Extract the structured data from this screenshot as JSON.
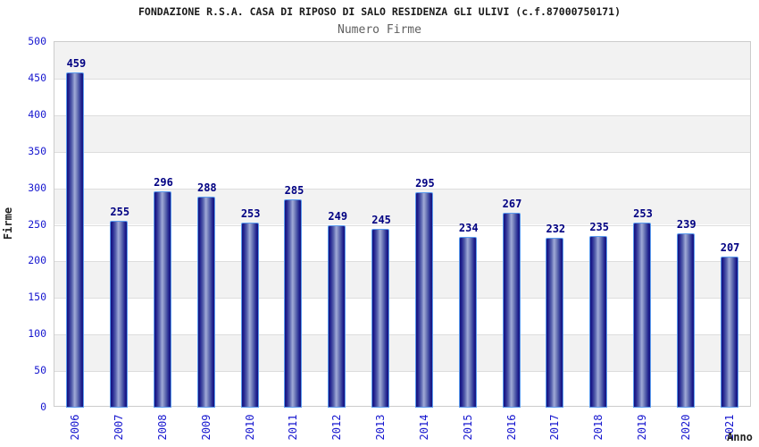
{
  "chart_data": {
    "type": "bar",
    "title": "FONDAZIONE R.S.A. CASA DI RIPOSO DI SALO RESIDENZA GLI ULIVI (c.f.87000750171)",
    "subtitle": "Numero Firme",
    "xlabel": "Anno",
    "ylabel": "Firme",
    "categories": [
      "2006",
      "2007",
      "2008",
      "2009",
      "2010",
      "2011",
      "2012",
      "2013",
      "2014",
      "2015",
      "2016",
      "2017",
      "2018",
      "2019",
      "2020",
      "2021"
    ],
    "values": [
      459,
      255,
      296,
      288,
      253,
      285,
      249,
      245,
      295,
      234,
      267,
      232,
      235,
      253,
      239,
      207
    ],
    "ylim": [
      0,
      500
    ],
    "ytick_step": 50,
    "grid": "alternating horizontal gray/white bands every 50 units with light gridlines",
    "legend": "none",
    "bar_labels_shown": true
  },
  "colors": {
    "bar_edge": "#14147e",
    "bar_center": "#a0aad8",
    "bar_outline": "#5b9bee",
    "value_label": "#000082",
    "tick_label": "#1717cf",
    "band_gray": "#f2f2f2",
    "plot_border": "#cccccc",
    "gridline": "#dddddd",
    "title_text": "#1a1a1a",
    "subtitle_text": "#606060"
  }
}
